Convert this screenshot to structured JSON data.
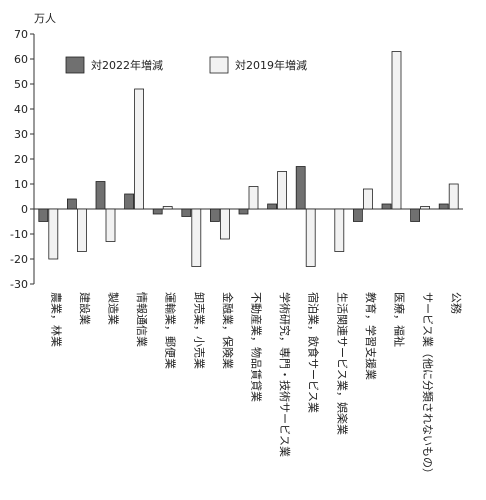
{
  "chart_data": {
    "type": "bar",
    "unit_label": "万人",
    "ylim": [
      -30,
      70
    ],
    "yticks": [
      70,
      60,
      50,
      40,
      30,
      20,
      10,
      0,
      -10,
      -20,
      -30
    ],
    "grid": false,
    "legend_position": "top-left",
    "categories": [
      "農業，林業",
      "建設業",
      "製造業",
      "情報通信業",
      "運輸業，郵便業",
      "卸売業，小売業",
      "金融業，保険業",
      "不動産業，物品賃貸業",
      "学術研究，専門・技術サービス業",
      "宿泊業，飲食サービス業",
      "生活関連サービス業，娯楽業",
      "教育，学習支援業",
      "医療，福祉",
      "サービス業（他に分類されないもの）",
      "公務"
    ],
    "series": [
      {
        "name": "対2022年増減",
        "color": "#707070",
        "values": [
          -5,
          4,
          11,
          6,
          -2,
          -3,
          -5,
          -2,
          2,
          17,
          0,
          -5,
          2,
          -5,
          2
        ]
      },
      {
        "name": "対2019年増減",
        "color": "#f2f2f2",
        "values": [
          -20,
          -17,
          -13,
          48,
          1,
          -23,
          -12,
          9,
          15,
          -23,
          -17,
          8,
          63,
          1,
          10
        ]
      }
    ]
  }
}
